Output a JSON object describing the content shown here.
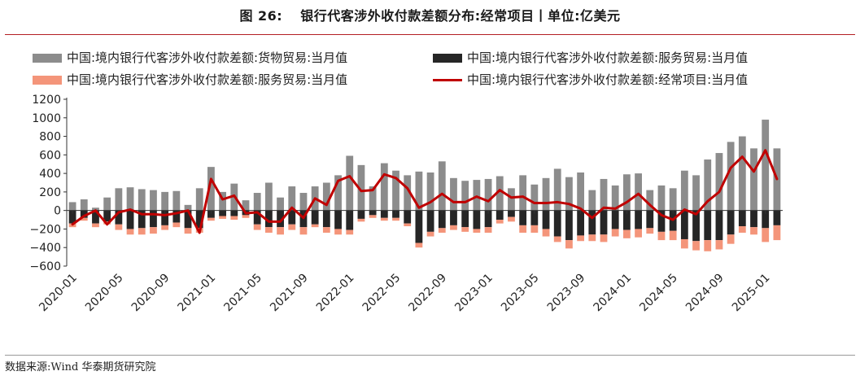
{
  "header": {
    "figure_label": "图 26:",
    "title": "银行代客涉外收付款差额分布:经常项目丨单位:亿美元"
  },
  "footer": {
    "source": "数据来源:Wind 华泰期货研究院"
  },
  "colors": {
    "goods": "#8c8c8c",
    "services_a": "#262626",
    "services_b": "#f4957a",
    "current_account": "#c00000",
    "rule": "#b41f24"
  },
  "chart_data": {
    "type": "bar",
    "stacked": true,
    "ylim": [
      -600,
      1200
    ],
    "y_ticks": [
      -600,
      -400,
      -200,
      0,
      200,
      400,
      600,
      800,
      1000,
      1200
    ],
    "x_tick_labels": [
      "2020-01",
      "2020-05",
      "2020-09",
      "2021-01",
      "2021-05",
      "2021-09",
      "2022-01",
      "2022-05",
      "2022-09",
      "2023-01",
      "2023-05",
      "2023-09",
      "2024-01",
      "2024-05",
      "2024-09",
      "2025-01"
    ],
    "grid": false,
    "legend_position": "top",
    "x": [
      "2020-01",
      "2020-02",
      "2020-03",
      "2020-04",
      "2020-05",
      "2020-06",
      "2020-07",
      "2020-08",
      "2020-09",
      "2020-10",
      "2020-11",
      "2020-12",
      "2021-01",
      "2021-02",
      "2021-03",
      "2021-04",
      "2021-05",
      "2021-06",
      "2021-07",
      "2021-08",
      "2021-09",
      "2021-10",
      "2021-11",
      "2021-12",
      "2022-01",
      "2022-02",
      "2022-03",
      "2022-04",
      "2022-05",
      "2022-06",
      "2022-07",
      "2022-08",
      "2022-09",
      "2022-10",
      "2022-11",
      "2022-12",
      "2023-01",
      "2023-02",
      "2023-03",
      "2023-04",
      "2023-05",
      "2023-06",
      "2023-07",
      "2023-08",
      "2023-09",
      "2023-10",
      "2023-11",
      "2023-12",
      "2024-01",
      "2024-02",
      "2024-03",
      "2024-04",
      "2024-05",
      "2024-06",
      "2024-07",
      "2024-08",
      "2024-09",
      "2024-10",
      "2024-11",
      "2024-12",
      "2025-01",
      "2025-02"
    ],
    "series": [
      {
        "name": "中国:境内银行代客涉外收付款差额:货物贸易:当月值",
        "kind": "bar",
        "stack": "pos",
        "color": "#8c8c8c",
        "values": [
          90,
          120,
          30,
          140,
          240,
          250,
          230,
          220,
          200,
          210,
          60,
          240,
          470,
          200,
          290,
          110,
          190,
          300,
          140,
          260,
          190,
          260,
          300,
          380,
          590,
          490,
          260,
          510,
          430,
          380,
          420,
          410,
          530,
          350,
          320,
          330,
          340,
          370,
          240,
          380,
          280,
          350,
          450,
          360,
          410,
          220,
          340,
          270,
          390,
          400,
          220,
          270,
          240,
          430,
          380,
          550,
          620,
          740,
          800,
          670,
          980,
          670
        ]
      },
      {
        "name": "中国:境内银行代客涉外收付款差额:服务贸易:当月值",
        "kind": "bar",
        "stack": "neg",
        "color": "#262626",
        "values": [
          -140,
          -80,
          -140,
          -120,
          -150,
          -200,
          -190,
          -180,
          -160,
          -130,
          -190,
          -190,
          -80,
          -60,
          -60,
          -50,
          -150,
          -180,
          -180,
          -150,
          -180,
          -150,
          -180,
          -200,
          -210,
          -90,
          -50,
          -80,
          -80,
          -140,
          -350,
          -230,
          -190,
          -160,
          -180,
          -200,
          -180,
          -100,
          -70,
          -160,
          -160,
          -200,
          -280,
          -320,
          -270,
          -260,
          -260,
          -200,
          -210,
          -200,
          -190,
          -230,
          -220,
          -310,
          -330,
          -320,
          -320,
          -260,
          -170,
          -180,
          -190,
          -160
        ]
      },
      {
        "name": "中国:境内银行代客涉外收付款差额:服务贸易:当月值",
        "kind": "bar",
        "stack": "neg",
        "color": "#f4957a",
        "values": [
          -40,
          -30,
          -40,
          -30,
          -60,
          -60,
          -70,
          -70,
          -50,
          -50,
          -60,
          -50,
          -30,
          -30,
          -40,
          -30,
          -60,
          -60,
          -80,
          -60,
          -80,
          -30,
          -60,
          -60,
          -50,
          -30,
          -30,
          -30,
          -30,
          -30,
          -50,
          -50,
          -50,
          -50,
          -50,
          -40,
          -60,
          -40,
          -50,
          -80,
          -80,
          -80,
          -60,
          -90,
          -60,
          -70,
          -80,
          -80,
          -90,
          -90,
          -60,
          -90,
          -100,
          -100,
          -100,
          -120,
          -100,
          -100,
          -70,
          -80,
          -150,
          -160
        ]
      },
      {
        "name": "中国:境内银行代客涉外收付款差额:经常项目:当月值",
        "kind": "line",
        "color": "#c00000",
        "values": [
          -150,
          -60,
          0,
          -150,
          -20,
          10,
          -40,
          -40,
          -50,
          -30,
          0,
          -240,
          340,
          120,
          160,
          -30,
          -20,
          -120,
          -120,
          30,
          -80,
          130,
          60,
          320,
          370,
          210,
          220,
          390,
          350,
          240,
          30,
          90,
          180,
          90,
          90,
          150,
          100,
          220,
          140,
          150,
          80,
          80,
          90,
          70,
          20,
          -80,
          30,
          20,
          90,
          180,
          60,
          -50,
          -100,
          10,
          -40,
          100,
          200,
          460,
          580,
          420,
          650,
          340
        ]
      }
    ]
  }
}
